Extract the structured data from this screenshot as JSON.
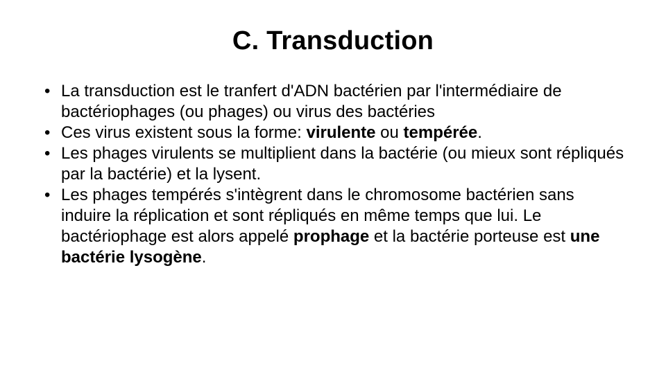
{
  "slide": {
    "title": "C. Transduction",
    "title_fontsize": 38,
    "title_weight": 700,
    "body_fontsize": 24,
    "line_height": 1.25,
    "text_color": "#000000",
    "background_color": "#ffffff",
    "bullets": [
      {
        "segments": [
          {
            "text": "La transduction est le tranfert d'ADN bactérien par l'intermédiaire de bactériophages (ou phages) ou virus des bactéries",
            "bold": false
          }
        ]
      },
      {
        "segments": [
          {
            "text": "Ces virus existent sous la forme: ",
            "bold": false
          },
          {
            "text": "virulente",
            "bold": true
          },
          {
            "text": " ou ",
            "bold": false
          },
          {
            "text": "tempérée",
            "bold": true
          },
          {
            "text": ".",
            "bold": false
          }
        ]
      },
      {
        "segments": [
          {
            "text": "Les phages virulents se multiplient dans la bactérie (ou mieux sont répliqués par la bactérie) et la lysent.",
            "bold": false
          }
        ]
      },
      {
        "segments": [
          {
            "text": "Les phages tempérés s'intègrent dans le chromosome bactérien sans induire la réplication et sont répliqués en même temps que lui. Le bactériophage est alors appelé ",
            "bold": false
          },
          {
            "text": "prophage",
            "bold": true
          },
          {
            "text": " et la bactérie porteuse est ",
            "bold": false
          },
          {
            "text": "une bactérie lysogène",
            "bold": true
          },
          {
            "text": ".",
            "bold": false
          }
        ]
      }
    ]
  }
}
